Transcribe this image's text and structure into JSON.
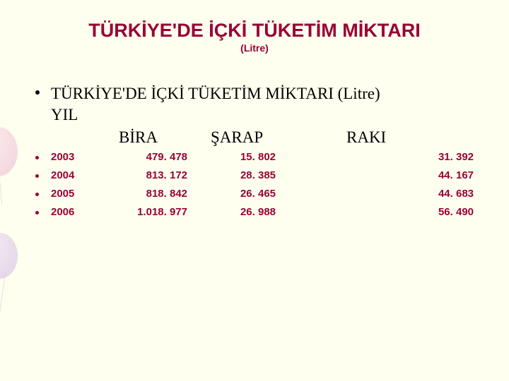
{
  "title": "TÜRKİYE'DE İÇKİ TÜKETİM MİKTARI",
  "subtitle": "(Litre)",
  "sub_heading": "TÜRKİYE'DE İÇKİ TÜKETİM MİKTARI (Litre)",
  "yil_label": "YIL",
  "columns": {
    "bira": "BİRA",
    "sarap": "ŞARAP",
    "raki": "RAKI"
  },
  "rows": [
    {
      "year": "2003",
      "bira": "479. 478",
      "sarap": "15. 802",
      "raki": "31. 392"
    },
    {
      "year": "2004",
      "bira": "813. 172",
      "sarap": "28. 385",
      "raki": "44. 167"
    },
    {
      "year": "2005",
      "bira": "818. 842",
      "sarap": "26. 465",
      "raki": "44. 683"
    },
    {
      "year": "2006",
      "bira": "1.018. 977",
      "sarap": "26. 988",
      "raki": "56. 490"
    }
  ],
  "colors": {
    "background": "#fffff0",
    "accent": "#990033",
    "text": "#000000"
  }
}
